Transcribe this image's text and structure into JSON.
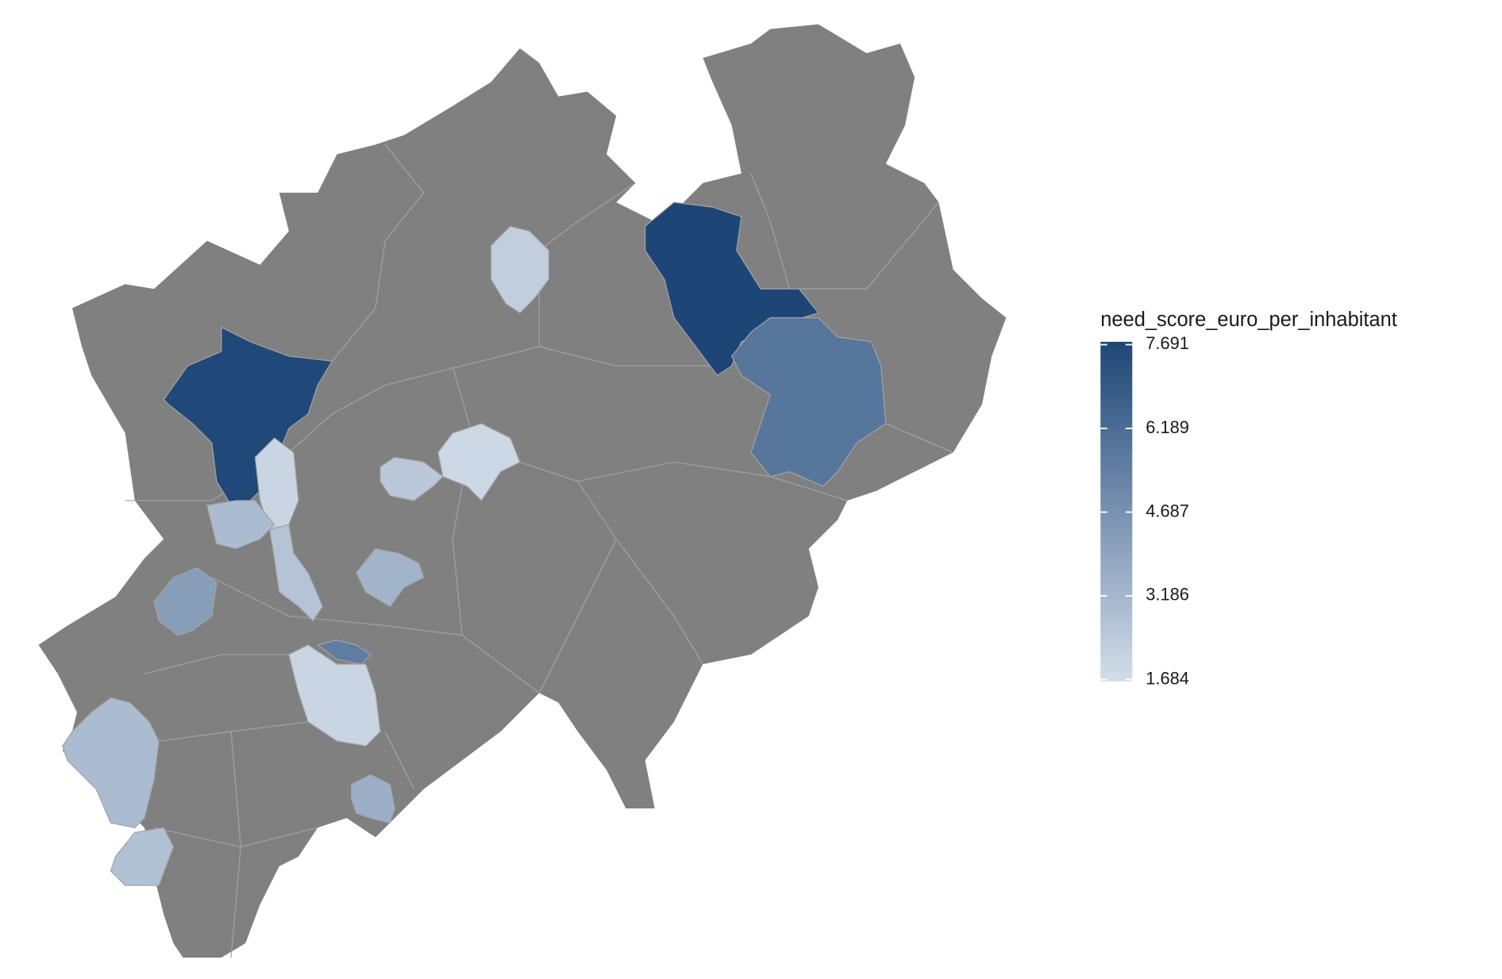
{
  "chart_data": {
    "type": "choropleth",
    "legend_title": "need_score_euro_per_inhabitant",
    "colorlim": [
      1.684,
      7.691
    ],
    "colorticks": [
      7.691,
      6.189,
      4.687,
      3.186,
      1.684
    ],
    "colors": [
      "#d3dde9",
      "#1d4677"
    ],
    "missing_color": "#808080",
    "values": [
      7.6,
      7.691,
      5.8,
      2.3,
      1.9,
      2.5,
      2.0,
      3.0,
      2.7,
      3.3,
      4.2,
      5.5,
      2.0,
      3.0,
      2.8,
      3.5
    ]
  }
}
